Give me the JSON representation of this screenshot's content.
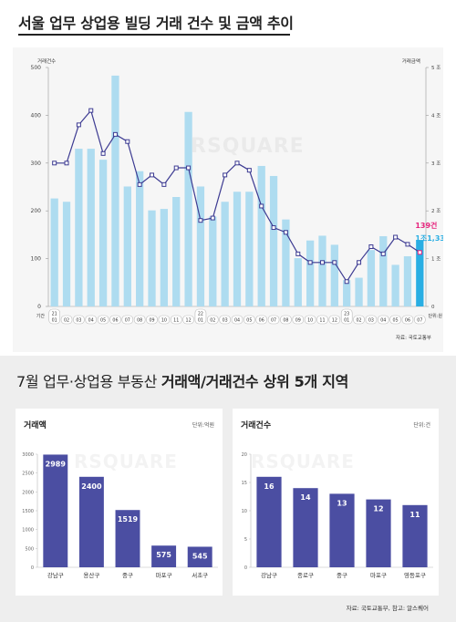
{
  "header": {
    "title": "서울 업무 상업용 빌딩 거래 건수 및 금액 추이",
    "left_axis_title": "거래건수",
    "right_axis_title": "거래금액",
    "time_label": "기간",
    "unit": "단위:원",
    "source": "자료: 국토교통부",
    "watermark": "RSQUARE",
    "callout_count": "139건",
    "callout_amount": "1조1,334억원"
  },
  "section2": {
    "title_normal": "7월 업무·상업용 부동산 ",
    "title_bold": "거래액/거래건수 상위 5개 지역",
    "source": "자료: 국토교통부, 참고: 알스퀘어"
  },
  "chart_data": [
    {
      "type": "bar+line",
      "title": "서울 업무 상업용 빌딩 거래 건수 및 금액 추이",
      "left_axis": {
        "label": "거래건수",
        "ylim": [
          0,
          500
        ],
        "ticks": [
          0,
          100,
          200,
          300,
          400,
          500
        ]
      },
      "right_axis": {
        "label": "거래금액",
        "ylim": [
          0,
          5
        ],
        "ticks": [
          "0",
          "1 조",
          "2 조",
          "3 조",
          "4 조",
          "5 조"
        ]
      },
      "month_labels": [
        "01",
        "02",
        "03",
        "04",
        "05",
        "06",
        "07",
        "08",
        "09",
        "10",
        "11",
        "12",
        "01",
        "02",
        "03",
        "04",
        "05",
        "06",
        "07",
        "08",
        "09",
        "10",
        "11",
        "12",
        "01",
        "02",
        "03",
        "04",
        "05",
        "06",
        "07"
      ],
      "year_labels": [
        {
          "index": 0,
          "label": "21"
        },
        {
          "index": 12,
          "label": "22"
        },
        {
          "index": 24,
          "label": "23"
        }
      ],
      "series": [
        {
          "name": "거래건수",
          "kind": "bar",
          "values": [
            226,
            219,
            330,
            330,
            307,
            483,
            251,
            283,
            201,
            204,
            229,
            407,
            251,
            188,
            219,
            240,
            240,
            294,
            273,
            182,
            101,
            138,
            148,
            129,
            55,
            60,
            118,
            147,
            87,
            105,
            139
          ]
        },
        {
          "name": "거래금액",
          "kind": "line",
          "values": [
            3.0,
            3.0,
            3.8,
            4.1,
            3.2,
            3.6,
            3.45,
            2.55,
            2.75,
            2.55,
            2.9,
            2.9,
            1.8,
            1.85,
            2.75,
            3.0,
            2.85,
            2.1,
            1.65,
            1.55,
            1.1,
            0.92,
            0.92,
            0.92,
            0.52,
            0.92,
            1.25,
            1.1,
            1.45,
            1.3,
            1.13
          ]
        }
      ]
    },
    {
      "type": "bar",
      "title": "거래액",
      "unit": "단위:억원",
      "categories": [
        "강남구",
        "용산구",
        "중구",
        "마포구",
        "서초구"
      ],
      "values": [
        2989,
        2400,
        1519,
        575,
        545
      ],
      "ylim": [
        0,
        3000
      ],
      "ticks": [
        0,
        500,
        1000,
        1500,
        2000,
        2500,
        3000
      ]
    },
    {
      "type": "bar",
      "title": "거래건수",
      "unit": "단위:건",
      "categories": [
        "강남구",
        "종로구",
        "중구",
        "마포구",
        "영등포구"
      ],
      "values": [
        16,
        14,
        13,
        12,
        11
      ],
      "ylim": [
        0,
        20
      ],
      "ticks": [
        0,
        5,
        10,
        15,
        20
      ]
    }
  ],
  "colors": {
    "bar_light": "#aedcf0",
    "bar_highlight": "#29aee3",
    "line": "#3d3b92",
    "callout_count": "#e6257d",
    "callout_amount": "#29aee3",
    "bar_dark": "#4b4ea2"
  }
}
